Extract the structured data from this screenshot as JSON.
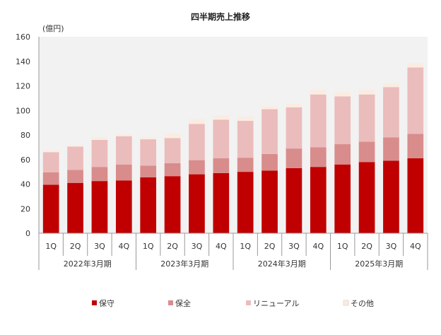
{
  "chart_data": {
    "type": "bar",
    "stacked": true,
    "title": "四半期売上推移",
    "unit_label": "(億円)",
    "ylim": [
      0,
      160
    ],
    "yticks": [
      0,
      20,
      40,
      60,
      80,
      100,
      120,
      140,
      160
    ],
    "categories": [
      "1Q",
      "2Q",
      "3Q",
      "4Q",
      "1Q",
      "2Q",
      "3Q",
      "4Q",
      "1Q",
      "2Q",
      "3Q",
      "4Q",
      "1Q",
      "2Q",
      "3Q",
      "4Q"
    ],
    "groups": [
      {
        "label": "2022年3月期",
        "count": 4
      },
      {
        "label": "2023年3月期",
        "count": 4
      },
      {
        "label": "2024年3月期",
        "count": 4
      },
      {
        "label": "2025年3月期",
        "count": 4
      }
    ],
    "series": [
      {
        "name": "保守",
        "color": "#c00000",
        "values": [
          39.5,
          41,
          42.5,
          43,
          45.5,
          46.5,
          48,
          49,
          50,
          51,
          53,
          54,
          56,
          58,
          59,
          61
        ]
      },
      {
        "name": "保全",
        "color": "#d98c8c",
        "values": [
          10,
          10.5,
          11.5,
          13,
          9.5,
          10.5,
          11.5,
          12,
          11.5,
          13.5,
          16,
          16,
          16.5,
          16.5,
          19,
          20
        ]
      },
      {
        "name": "リニューアル",
        "color": "#ebbcbc",
        "values": [
          16.5,
          19,
          22,
          23,
          21.5,
          20.5,
          29.5,
          31.5,
          30,
          36.5,
          33.5,
          43,
          39,
          38.5,
          41,
          54
        ]
      },
      {
        "name": "その他",
        "color": "#fbece2",
        "values": [
          1.5,
          1,
          2,
          1.5,
          2,
          4,
          4,
          3.5,
          3.5,
          2.5,
          3,
          4,
          3.5,
          4,
          3,
          3.5
        ]
      }
    ],
    "grid": false,
    "legend_position": "bottom"
  }
}
